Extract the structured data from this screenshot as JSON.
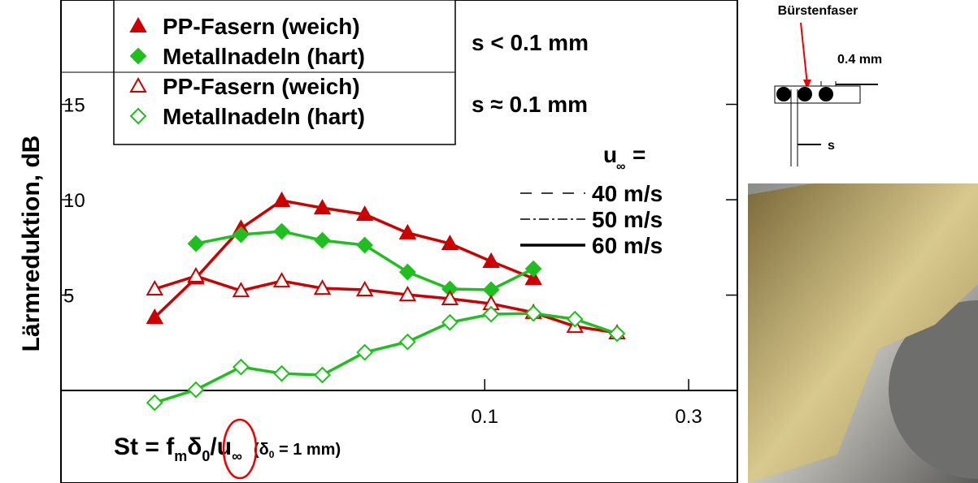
{
  "chart_data": {
    "type": "line",
    "xscale": "log",
    "y_label": "Lärmreduktion, dB",
    "x_label_parts": [
      "St = f",
      "m",
      "δ",
      "0",
      "/u",
      "∞",
      "(δ",
      "0",
      " = 1 mm)"
    ],
    "xlim": [
      0.0102,
      0.39
    ],
    "xticks": [
      0.1,
      0.3
    ],
    "ylim": [
      -4.85,
      20.47
    ],
    "yticks": [
      5,
      10,
      15
    ],
    "series": [
      {
        "name": "PP-Fasern (weich)",
        "color": "#cc0000",
        "marker": "triangle",
        "filled": true,
        "x": [
          0.0169,
          0.0211,
          0.0269,
          0.0335,
          0.0417,
          0.0524,
          0.066,
          0.0829,
          0.1035,
          0.13
        ],
        "values": [
          3.83,
          5.9,
          8.5,
          9.96,
          9.57,
          9.23,
          8.26,
          7.7,
          6.77,
          5.87
        ]
      },
      {
        "name": "Metallnadeln (hart)",
        "color": "#1fbf1f",
        "marker": "diamond",
        "filled": true,
        "x": [
          0.0211,
          0.0269,
          0.0335,
          0.0417,
          0.0524,
          0.066,
          0.0829,
          0.1035,
          0.13
        ],
        "values": [
          7.7,
          8.17,
          8.34,
          7.87,
          7.62,
          6.21,
          5.32,
          5.28,
          6.38
        ]
      },
      {
        "name": "PP-Fasern (weich)",
        "color": "#cc0000",
        "marker": "triangle",
        "filled": false,
        "x": [
          0.0169,
          0.0211,
          0.0269,
          0.0335,
          0.0417,
          0.0524,
          0.066,
          0.0829,
          0.1035,
          0.13,
          0.1626,
          0.204
        ],
        "values": [
          5.32,
          6.0,
          5.23,
          5.74,
          5.36,
          5.28,
          5.02,
          4.81,
          4.55,
          4.09,
          3.36,
          3.02
        ]
      },
      {
        "name": "Metallnadeln (hart)",
        "color": "#1fbf1f",
        "marker": "diamond",
        "filled": false,
        "x": [
          0.0169,
          0.0211,
          0.0269,
          0.0335,
          0.0417,
          0.0524,
          0.066,
          0.0829,
          0.1035,
          0.13,
          0.1626,
          0.204
        ],
        "values": [
          -0.64,
          0.04,
          1.23,
          0.89,
          0.81,
          2.0,
          2.55,
          3.57,
          4.0,
          4.04,
          3.74,
          2.98
        ]
      }
    ],
    "group_labels": [
      "s < 0.1 mm",
      "s ≈ 0.1 mm"
    ],
    "speed_legend": {
      "u": "u",
      "sub": "∞",
      "eq": "=",
      "items": [
        "40 m/s",
        "50 m/s",
        "60 m/s"
      ]
    }
  },
  "diagram": {
    "fiber": "Bürstenfaser",
    "width": "0.4 mm",
    "gap": "s"
  }
}
